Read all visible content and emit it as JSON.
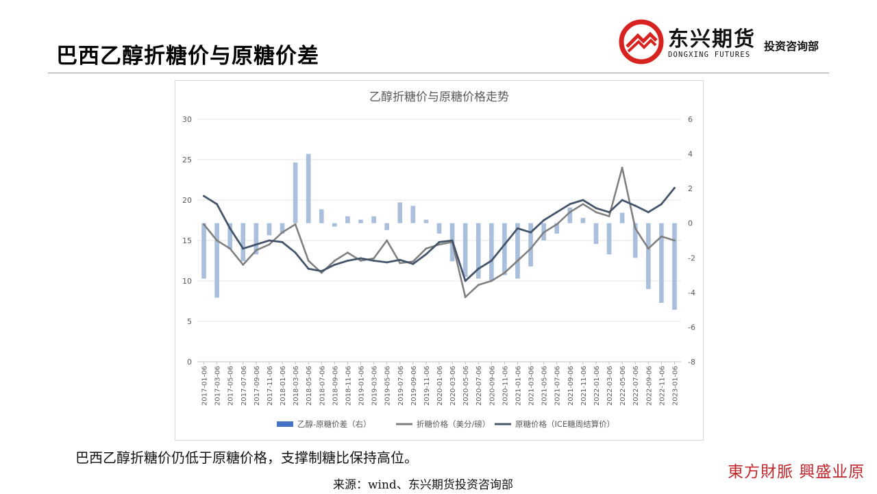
{
  "page": {
    "title": "巴西乙醇折糖价与原糖价差",
    "caption": "巴西乙醇折糖价仍低于原糖价格，支撑制糖比保持高位。",
    "source": "来源：wind、东兴期货投资咨询部",
    "slogan": "東方財脈 興盛业原"
  },
  "logo": {
    "name": "东兴期货",
    "english": "DONGXING FUTURES",
    "department": "投资咨询部",
    "colors": {
      "red": "#d7231f",
      "dark": "#111111"
    }
  },
  "chart_data": {
    "type": "line",
    "title": "乙醇折糖价与原糖价格走势",
    "categories": [
      "2017-01-06",
      "2017-03-06",
      "2017-05-06",
      "2017-07-06",
      "2017-09-06",
      "2017-11-06",
      "2018-01-06",
      "2018-03-06",
      "2018-05-06",
      "2018-07-06",
      "2018-09-06",
      "2018-11-06",
      "2019-01-06",
      "2019-03-06",
      "2019-05-06",
      "2019-07-06",
      "2019-09-06",
      "2019-11-06",
      "2020-01-06",
      "2020-03-06",
      "2020-05-06",
      "2020-07-06",
      "2020-09-06",
      "2020-11-06",
      "2021-01-06",
      "2021-03-06",
      "2021-05-06",
      "2021-07-06",
      "2021-09-06",
      "2021-11-06",
      "2022-01-06",
      "2022-03-06",
      "2022-05-06",
      "2022-07-06",
      "2022-09-06",
      "2022-11-06",
      "2023-01-06"
    ],
    "y_left": {
      "min": 0,
      "max": 30,
      "ticks": [
        "0",
        "5",
        "10",
        "15",
        "20",
        "25",
        "30"
      ]
    },
    "y_right": {
      "min": -8,
      "max": 6,
      "ticks": [
        "-8",
        "-6",
        "-4",
        "-2",
        "0",
        "2",
        "4",
        "6"
      ]
    },
    "series": [
      {
        "name": "乙醇-原糖价差（右）",
        "kind": "bar",
        "axis": "right",
        "color": "#a9bfdc",
        "values": [
          -3.2,
          -4.3,
          -1.5,
          -2.2,
          -1.8,
          -0.7,
          -0.6,
          3.5,
          4.0,
          0.8,
          -0.2,
          0.4,
          0.2,
          0.4,
          -0.4,
          1.2,
          1.0,
          0.2,
          -0.6,
          -2.2,
          -3.1,
          -3.2,
          -3.3,
          -3.0,
          -3.2,
          -2.5,
          -1.0,
          -0.6,
          0.9,
          0.3,
          -1.2,
          -1.8,
          0.6,
          -2.0,
          -3.8,
          -4.6,
          -5.0
        ]
      },
      {
        "name": "折糖价格（美分/磅）",
        "kind": "line",
        "axis": "left",
        "color": "#7f7f7f",
        "values": [
          17.0,
          15.0,
          14.0,
          12.0,
          13.8,
          14.5,
          16.0,
          17.0,
          12.5,
          11.0,
          12.5,
          13.5,
          12.5,
          12.8,
          15.0,
          12.2,
          12.4,
          14.0,
          14.5,
          14.8,
          8.0,
          9.5,
          10.0,
          11.0,
          12.5,
          14.0,
          16.0,
          17.0,
          18.5,
          19.5,
          18.5,
          18.0,
          24.0,
          16.5,
          14.0,
          15.5,
          15.0
        ]
      },
      {
        "name": "原糖价格（ICE糖周结算价）",
        "kind": "line",
        "axis": "left",
        "color": "#44546a",
        "values": [
          20.5,
          19.5,
          16.5,
          14.0,
          14.5,
          15.0,
          14.8,
          13.5,
          11.5,
          11.2,
          12.0,
          12.5,
          12.8,
          12.5,
          12.3,
          12.6,
          12.1,
          13.3,
          14.8,
          15.0,
          10.0,
          11.5,
          12.5,
          14.5,
          16.5,
          16.0,
          17.5,
          18.5,
          19.5,
          20.0,
          19.0,
          18.5,
          20.0,
          19.3,
          18.5,
          19.5,
          21.5
        ]
      }
    ],
    "legend_position": "bottom",
    "grid": true
  }
}
